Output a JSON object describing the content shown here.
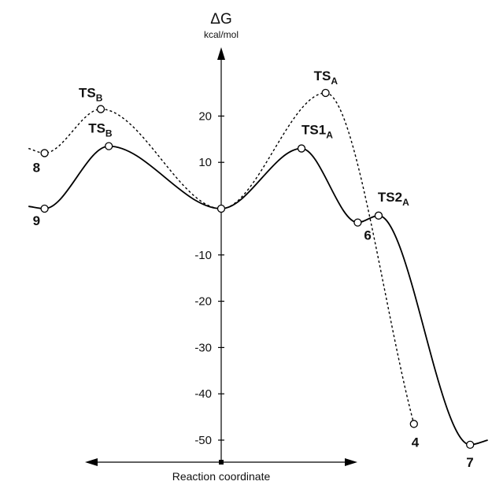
{
  "chart_data": {
    "type": "line",
    "title": "",
    "ylabel": "ΔG",
    "yunit": "kcal/mol",
    "xlabel": "Reaction coordinate",
    "ylim": [
      -53,
      35
    ],
    "yticks": [
      20,
      10,
      -10,
      -20,
      -30,
      -40,
      -50
    ],
    "ytick_labels": [
      "20",
      "10",
      "-10",
      "-20",
      "-30",
      "-40",
      "-50"
    ],
    "grid": false,
    "legend": "none",
    "series": [
      {
        "style": "solid",
        "points": [
          {
            "x": -12,
            "y": 0.5
          },
          {
            "x": -11,
            "y": 0,
            "label": "9"
          },
          {
            "x": -7,
            "y": 13.5,
            "label": "TS_B"
          },
          {
            "x": 0,
            "y": 0
          },
          {
            "x": 5,
            "y": 13,
            "label": "TS1_A"
          },
          {
            "x": 8.5,
            "y": -3,
            "label": "6"
          },
          {
            "x": 9.8,
            "y": -1.5,
            "label": "TS2_A"
          },
          {
            "x": 15.5,
            "y": -51,
            "label": "7"
          },
          {
            "x": 16.6,
            "y": -50
          }
        ]
      },
      {
        "style": "dashed",
        "points": [
          {
            "x": -12,
            "y": 13
          },
          {
            "x": -11,
            "y": 12,
            "label": "8"
          },
          {
            "x": -7.5,
            "y": 21.5,
            "label": "TS_B"
          },
          {
            "x": 0,
            "y": 0
          },
          {
            "x": 6.5,
            "y": 25,
            "label": "TS_A"
          },
          {
            "x": 12,
            "y": -46.5,
            "label": "4"
          }
        ]
      }
    ]
  }
}
